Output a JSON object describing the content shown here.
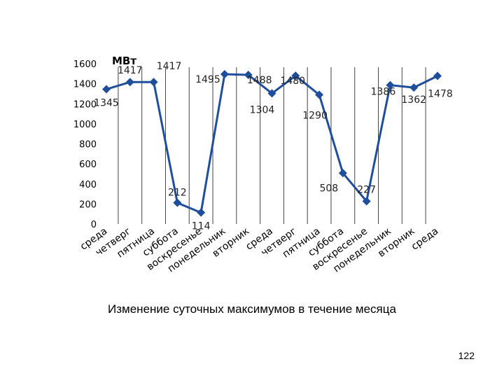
{
  "chart_data": {
    "type": "line",
    "ylabel": "МВт",
    "ylim": [
      0,
      1600
    ],
    "yticks": [
      "0",
      "200",
      "400",
      "600",
      "800",
      "1000",
      "1200",
      "1400",
      "1600"
    ],
    "grid": "vertical",
    "categories": [
      "среда",
      "четверг",
      "пятница",
      "суббота",
      "воскресенье",
      "понедельник",
      "вторник",
      "среда",
      "четверг",
      "пятница",
      "суббота",
      "воскресенье",
      "понедельник",
      "вторник",
      "среда"
    ],
    "values": [
      1345,
      1417,
      1417,
      212,
      114,
      1495,
      1488,
      1304,
      1480,
      1290,
      508,
      227,
      1386,
      1362,
      1478
    ],
    "color": "#1f4e9c"
  },
  "caption": "Изменение суточных максимумов в течение месяца",
  "page_number": "122"
}
